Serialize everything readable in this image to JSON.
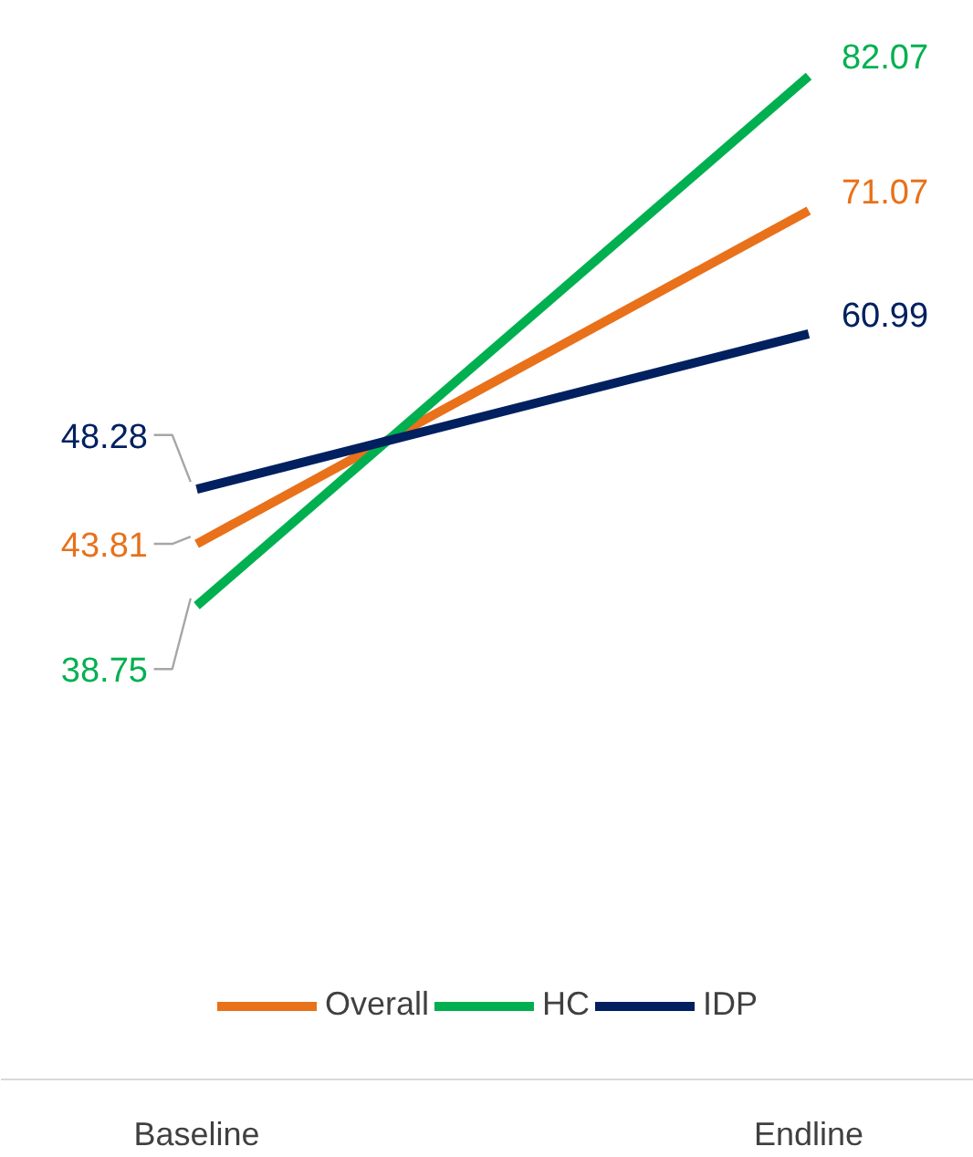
{
  "chart_data": {
    "type": "line",
    "categories": [
      "Baseline",
      "Endline"
    ],
    "series": [
      {
        "name": "Overall",
        "color": "#e8711a",
        "values": [
          43.81,
          71.07
        ]
      },
      {
        "name": "HC",
        "color": "#00b050",
        "values": [
          38.75,
          82.07
        ]
      },
      {
        "name": "IDP",
        "color": "#002060",
        "values": [
          48.28,
          60.99
        ]
      }
    ],
    "data_labels": true,
    "legend": "bottom",
    "grid": false,
    "marker": "none",
    "line_style": "solid"
  }
}
